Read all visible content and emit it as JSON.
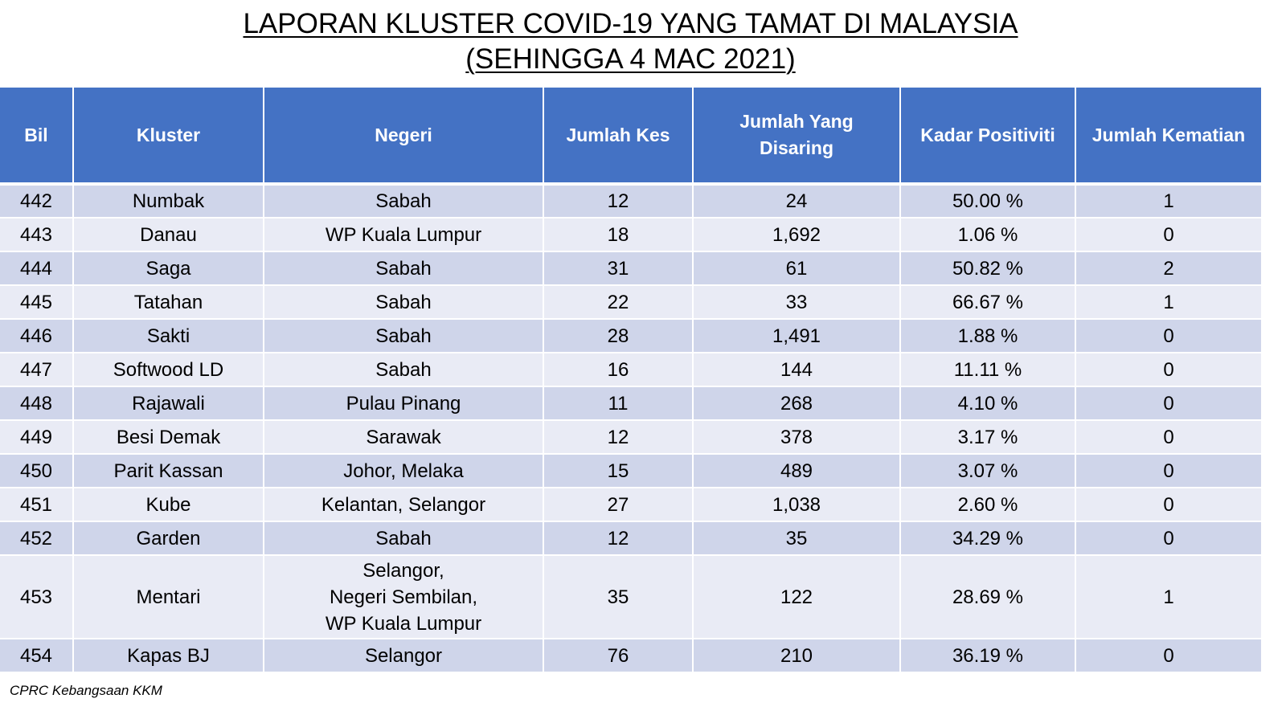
{
  "title": {
    "line1": "LAPORAN KLUSTER COVID-19 YANG TAMAT DI MALAYSIA",
    "line2": "(SEHINGGA 4 MAC 2021)"
  },
  "table": {
    "headers": {
      "bil": "Bil",
      "kluster": "Kluster",
      "negeri": "Negeri",
      "jumlah_kes": "Jumlah Kes",
      "jumlah_disaring_line1": "Jumlah Yang",
      "jumlah_disaring_line2": "Disaring",
      "kadar_positiviti": "Kadar Positiviti",
      "jumlah_kematian": "Jumlah Kematian"
    },
    "rows": [
      {
        "bil": "442",
        "kluster": "Numbak",
        "negeri": [
          "Sabah"
        ],
        "kes": "12",
        "disaring": "24",
        "positiviti": "50.00 %",
        "kematian": "1"
      },
      {
        "bil": "443",
        "kluster": "Danau",
        "negeri": [
          "WP Kuala Lumpur"
        ],
        "kes": "18",
        "disaring": "1,692",
        "positiviti": "1.06 %",
        "kematian": "0"
      },
      {
        "bil": "444",
        "kluster": "Saga",
        "negeri": [
          "Sabah"
        ],
        "kes": "31",
        "disaring": "61",
        "positiviti": "50.82 %",
        "kematian": "2"
      },
      {
        "bil": "445",
        "kluster": "Tatahan",
        "negeri": [
          "Sabah"
        ],
        "kes": "22",
        "disaring": "33",
        "positiviti": "66.67 %",
        "kematian": "1"
      },
      {
        "bil": "446",
        "kluster": "Sakti",
        "negeri": [
          "Sabah"
        ],
        "kes": "28",
        "disaring": "1,491",
        "positiviti": "1.88 %",
        "kematian": "0"
      },
      {
        "bil": "447",
        "kluster": "Softwood LD",
        "negeri": [
          "Sabah"
        ],
        "kes": "16",
        "disaring": "144",
        "positiviti": "11.11 %",
        "kematian": "0"
      },
      {
        "bil": "448",
        "kluster": "Rajawali",
        "negeri": [
          "Pulau Pinang"
        ],
        "kes": "11",
        "disaring": "268",
        "positiviti": "4.10 %",
        "kematian": "0"
      },
      {
        "bil": "449",
        "kluster": "Besi Demak",
        "negeri": [
          "Sarawak"
        ],
        "kes": "12",
        "disaring": "378",
        "positiviti": "3.17 %",
        "kematian": "0"
      },
      {
        "bil": "450",
        "kluster": "Parit Kassan",
        "negeri": [
          "Johor, Melaka"
        ],
        "kes": "15",
        "disaring": "489",
        "positiviti": "3.07 %",
        "kematian": "0"
      },
      {
        "bil": "451",
        "kluster": "Kube",
        "negeri": [
          "Kelantan, Selangor"
        ],
        "kes": "27",
        "disaring": "1,038",
        "positiviti": "2.60 %",
        "kematian": "0"
      },
      {
        "bil": "452",
        "kluster": "Garden",
        "negeri": [
          "Sabah"
        ],
        "kes": "12",
        "disaring": "35",
        "positiviti": "34.29 %",
        "kematian": "0"
      },
      {
        "bil": "453",
        "kluster": "Mentari",
        "negeri": [
          "Selangor,",
          "Negeri Sembilan,",
          "WP Kuala Lumpur"
        ],
        "kes": "35",
        "disaring": "122",
        "positiviti": "28.69 %",
        "kematian": "1"
      },
      {
        "bil": "454",
        "kluster": "Kapas BJ",
        "negeri": [
          "Selangor"
        ],
        "kes": "76",
        "disaring": "210",
        "positiviti": "36.19 %",
        "kematian": "0"
      }
    ]
  },
  "source": "CPRC Kebangsaan KKM",
  "colors": {
    "header_bg": "#4472c4",
    "row_odd_bg": "#cfd5ea",
    "row_even_bg": "#e9ebf5"
  }
}
